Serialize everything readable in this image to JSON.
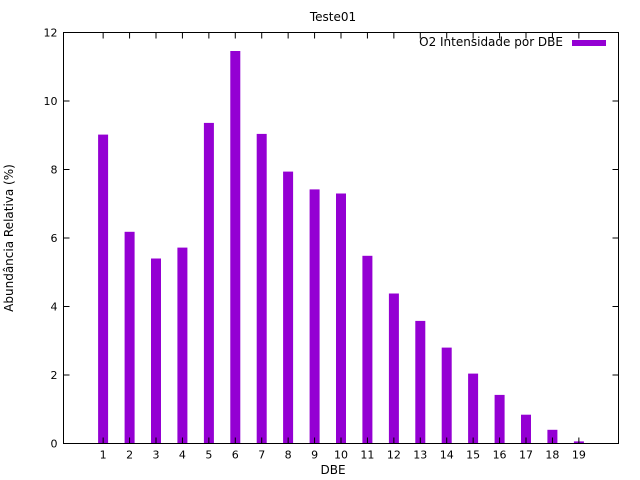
{
  "chart_data": {
    "type": "bar",
    "title": "Teste01",
    "xlabel": "DBE",
    "ylabel": "Abundância Relativa (%)",
    "categories": [
      "1",
      "2",
      "3",
      "4",
      "5",
      "6",
      "7",
      "8",
      "9",
      "10",
      "11",
      "12",
      "13",
      "14",
      "15",
      "16",
      "17",
      "18",
      "19"
    ],
    "series": [
      {
        "name": "O2 Intensidade por DBE",
        "color": "#9400d3",
        "values": [
          9.02,
          6.18,
          5.4,
          5.72,
          9.36,
          11.46,
          9.04,
          7.94,
          7.42,
          7.3,
          5.48,
          4.38,
          3.58,
          2.8,
          2.04,
          1.42,
          0.84,
          0.4,
          0.06
        ]
      }
    ],
    "x_range": [
      -0.5,
      20.5
    ],
    "ylim": [
      0,
      12
    ],
    "yticks": [
      0,
      2,
      4,
      6,
      8,
      10,
      12
    ],
    "yticks_labels": [
      "0",
      "2",
      "4",
      "6",
      "8",
      "10",
      "12"
    ],
    "grid": false,
    "legend_position": "top-right"
  }
}
